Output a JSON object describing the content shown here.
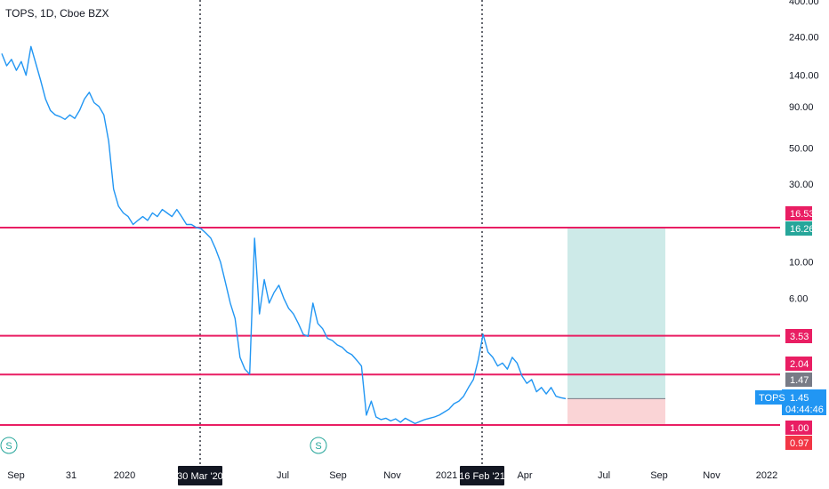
{
  "header": {
    "title": "TOPS, 1D, Cboe BZX"
  },
  "colors": {
    "price_line": "#2196f3",
    "level_line": "#e91e63",
    "vline": "#131722",
    "target_zone": "#b2dfdb",
    "stop_zone": "#f9c9cc",
    "axis_text": "#131722",
    "badge_pink": "#e91e63",
    "badge_teal": "#26a69a",
    "badge_gray": "#787b86",
    "badge_red": "#f23645",
    "badge_blue": "#2196f3",
    "badge_black": "#131722",
    "split_icon": "#26a69a"
  },
  "chart_data": {
    "type": "line",
    "scale": "log",
    "y_ticks": [
      "400.00",
      "240.00",
      "140.00",
      "90.00",
      "50.00",
      "30.00",
      "10.00",
      "6.00"
    ],
    "x_ticks": [
      "Sep",
      "31",
      "2020",
      "Jul",
      "Sep",
      "Nov",
      "2021",
      "Apr",
      "Jul",
      "Sep",
      "Nov",
      "2022"
    ],
    "highlighted_dates": [
      "30 Mar '20",
      "16 Feb '21"
    ],
    "horizontal_levels": [
      16.26,
      3.53,
      2.04,
      1.0
    ],
    "price_labels": [
      {
        "text": "16.53",
        "color": "pink"
      },
      {
        "text": "16.26",
        "color": "teal"
      },
      {
        "text": "3.53",
        "color": "pink"
      },
      {
        "text": "2.04",
        "color": "pink"
      },
      {
        "text": "1.47",
        "color": "gray"
      },
      {
        "text": "1.00",
        "color": "pink"
      },
      {
        "text": "0.97",
        "color": "red"
      }
    ],
    "symbol_tag": "TOPS",
    "current_price": "1.45",
    "countdown": "04:44:46",
    "position": {
      "entry": 1.45,
      "target": 16.26,
      "stop": 1.0
    },
    "split_marker": "S",
    "series": [
      {
        "values": [
          190,
          160,
          175,
          150,
          170,
          140,
          210,
          165,
          130,
          100,
          85,
          80,
          78,
          75,
          80,
          76,
          85,
          100,
          110,
          95,
          90,
          80,
          55,
          28,
          22,
          20,
          19,
          17,
          18,
          19,
          18,
          20,
          19,
          21,
          20,
          19,
          21,
          19,
          17,
          17,
          16.3,
          16,
          15,
          14,
          12,
          10,
          7.5,
          5.6,
          4.5,
          2.6,
          2.2,
          2.05,
          14,
          4.8,
          7.8,
          5.6,
          6.5,
          7.2,
          6.0,
          5.2,
          4.8,
          4.2,
          3.6,
          3.5,
          5.6,
          4.2,
          3.9,
          3.4,
          3.3,
          3.1,
          3.0,
          2.8,
          2.7,
          2.5,
          2.3,
          1.15,
          1.4,
          1.12,
          1.08,
          1.1,
          1.06,
          1.09,
          1.04,
          1.1,
          1.06,
          1.02,
          1.05,
          1.08,
          1.1,
          1.12,
          1.15,
          1.2,
          1.25,
          1.35,
          1.4,
          1.5,
          1.7,
          1.9,
          2.5,
          3.6,
          2.8,
          2.6,
          2.3,
          2.4,
          2.2,
          2.6,
          2.4,
          2.0,
          1.8,
          1.9,
          1.6,
          1.7,
          1.55,
          1.7,
          1.5,
          1.47,
          1.45
        ]
      }
    ]
  }
}
